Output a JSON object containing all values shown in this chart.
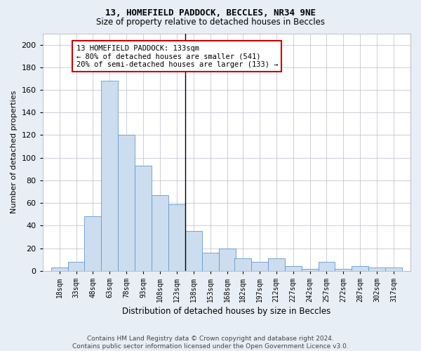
{
  "title": "13, HOMEFIELD PADDOCK, BECCLES, NR34 9NE",
  "subtitle": "Size of property relative to detached houses in Beccles",
  "xlabel": "Distribution of detached houses by size in Beccles",
  "ylabel": "Number of detached properties",
  "footer1": "Contains HM Land Registry data © Crown copyright and database right 2024.",
  "footer2": "Contains public sector information licensed under the Open Government Licence v3.0.",
  "bar_color": "#ccddef",
  "bar_edge_color": "#6699cc",
  "vline_color": "#000000",
  "annotation_text": "13 HOMEFIELD PADDOCK: 133sqm\n← 80% of detached houses are smaller (541)\n20% of semi-detached houses are larger (133) →",
  "annotation_box_color": "#cc0000",
  "categories": [
    "18sqm",
    "33sqm",
    "48sqm",
    "63sqm",
    "78sqm",
    "93sqm",
    "108sqm",
    "123sqm",
    "138sqm",
    "153sqm",
    "168sqm",
    "182sqm",
    "197sqm",
    "212sqm",
    "227sqm",
    "242sqm",
    "257sqm",
    "272sqm",
    "287sqm",
    "302sqm",
    "317sqm"
  ],
  "bin_width": 15,
  "bin_starts": [
    18,
    33,
    48,
    63,
    78,
    93,
    108,
    123,
    138,
    153,
    168,
    182,
    197,
    212,
    227,
    242,
    257,
    272,
    287,
    302,
    317
  ],
  "values": [
    3,
    8,
    48,
    168,
    120,
    93,
    67,
    59,
    35,
    16,
    20,
    11,
    8,
    11,
    4,
    2,
    8,
    2,
    4,
    3,
    3
  ],
  "vline_x_index": 8,
  "vline_label_sqm": 133,
  "ylim": [
    0,
    210
  ],
  "yticks": [
    0,
    20,
    40,
    60,
    80,
    100,
    120,
    140,
    160,
    180,
    200
  ],
  "background_color": "#e8eef5",
  "plot_background": "#ffffff",
  "grid_color": "#bbbbcc",
  "title_fontsize": 9,
  "subtitle_fontsize": 8.5,
  "xlabel_fontsize": 8.5,
  "ylabel_fontsize": 8,
  "tick_fontsize": 7,
  "annotation_fontsize": 7.5,
  "footer_fontsize": 6.5
}
